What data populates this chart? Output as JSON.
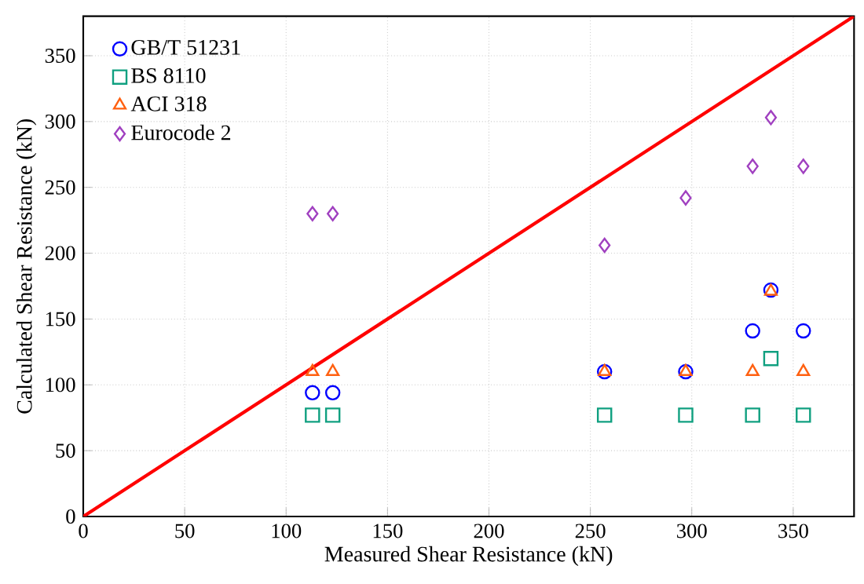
{
  "chart_data": {
    "type": "scatter",
    "xlabel": "Measured Shear Resistance (kN)",
    "ylabel": "Calculated Shear Resistance (kN)",
    "x": [
      113,
      123,
      257,
      297,
      330,
      339,
      355
    ],
    "series": [
      {
        "name": "GB/T 51231",
        "color": "#0000ff",
        "marker": "circle",
        "values": [
          94,
          94,
          110,
          110,
          141,
          172,
          141
        ]
      },
      {
        "name": "BS 8110",
        "color": "#10a080",
        "marker": "square",
        "values": [
          77,
          77,
          77,
          77,
          77,
          120,
          77
        ]
      },
      {
        "name": "ACI 318",
        "color": "#ff6010",
        "marker": "triangle",
        "values": [
          110,
          110,
          110,
          110,
          110,
          171,
          110
        ]
      },
      {
        "name": "Eurocode 2",
        "color": "#a040c0",
        "marker": "diamond",
        "values": [
          230,
          230,
          206,
          242,
          266,
          303,
          266
        ]
      },
      {
        "type": "line",
        "color": "#ff0000",
        "marker": "none",
        "x": [
          0,
          380
        ],
        "values": [
          0,
          380
        ]
      }
    ],
    "xlim": [
      0,
      380
    ],
    "ylim": [
      0,
      380
    ],
    "xticks": [
      0,
      50,
      100,
      150,
      200,
      250,
      300,
      350
    ],
    "yticks": [
      0,
      50,
      100,
      150,
      200,
      250,
      300,
      350
    ],
    "grid": true,
    "legend": "top left"
  }
}
